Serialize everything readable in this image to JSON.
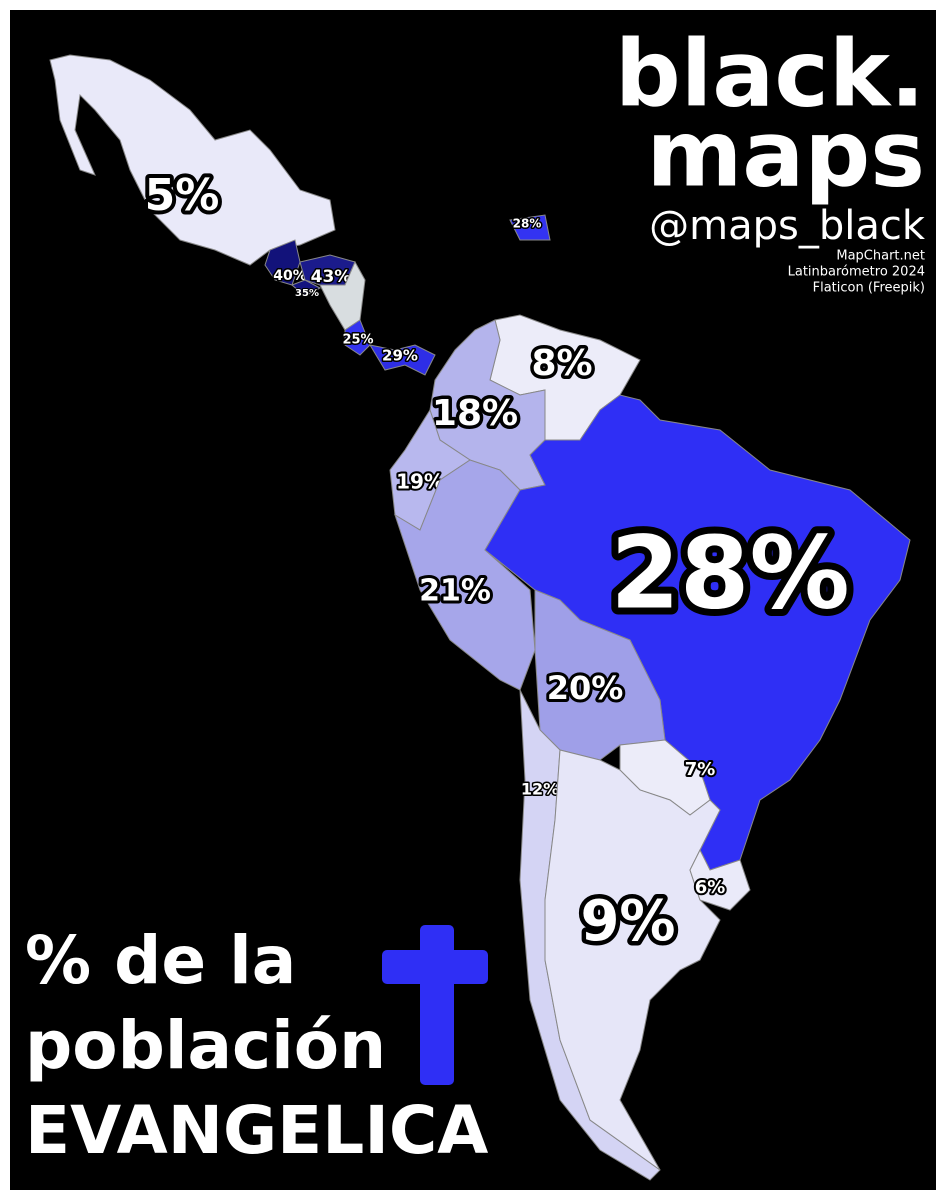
{
  "brand": {
    "line1": "black.",
    "line2": "maps",
    "handle": "@maps_black"
  },
  "sources": [
    "MapChart.net",
    "Latinbarómetro 2024",
    "Flaticon (Freepik)"
  ],
  "title": {
    "line1": "% de la",
    "line2": "población",
    "line3": "EVANGELICA"
  },
  "regions": [
    {
      "label": "5%",
      "color": "#e9e9f9"
    },
    {
      "label": "40%",
      "color": "#12127a"
    },
    {
      "label": "43%",
      "color": "#1b1b8c"
    },
    {
      "label": "35%",
      "color": "#141480"
    },
    {
      "label": "25%",
      "color": "#3434f0"
    },
    {
      "label": "29%",
      "color": "#2e2ee6"
    },
    {
      "label": "28%",
      "color": "#3333f2"
    },
    {
      "label": "8%",
      "color": "#ececf9"
    },
    {
      "label": "18%",
      "color": "#b4b4ec"
    },
    {
      "label": "19%",
      "color": "#b8b8ee"
    },
    {
      "label": "21%",
      "color": "#a6a6ea"
    },
    {
      "label": "28%",
      "color": "#2f2ff5"
    },
    {
      "label": "20%",
      "color": "#9f9fe8"
    },
    {
      "label": "7%",
      "color": "#ececf9"
    },
    {
      "label": "12%",
      "color": "#d4d4f4"
    },
    {
      "label": "9%",
      "color": "#e6e6f8"
    },
    {
      "label": "6%",
      "color": "#eaeaf9"
    }
  ]
}
